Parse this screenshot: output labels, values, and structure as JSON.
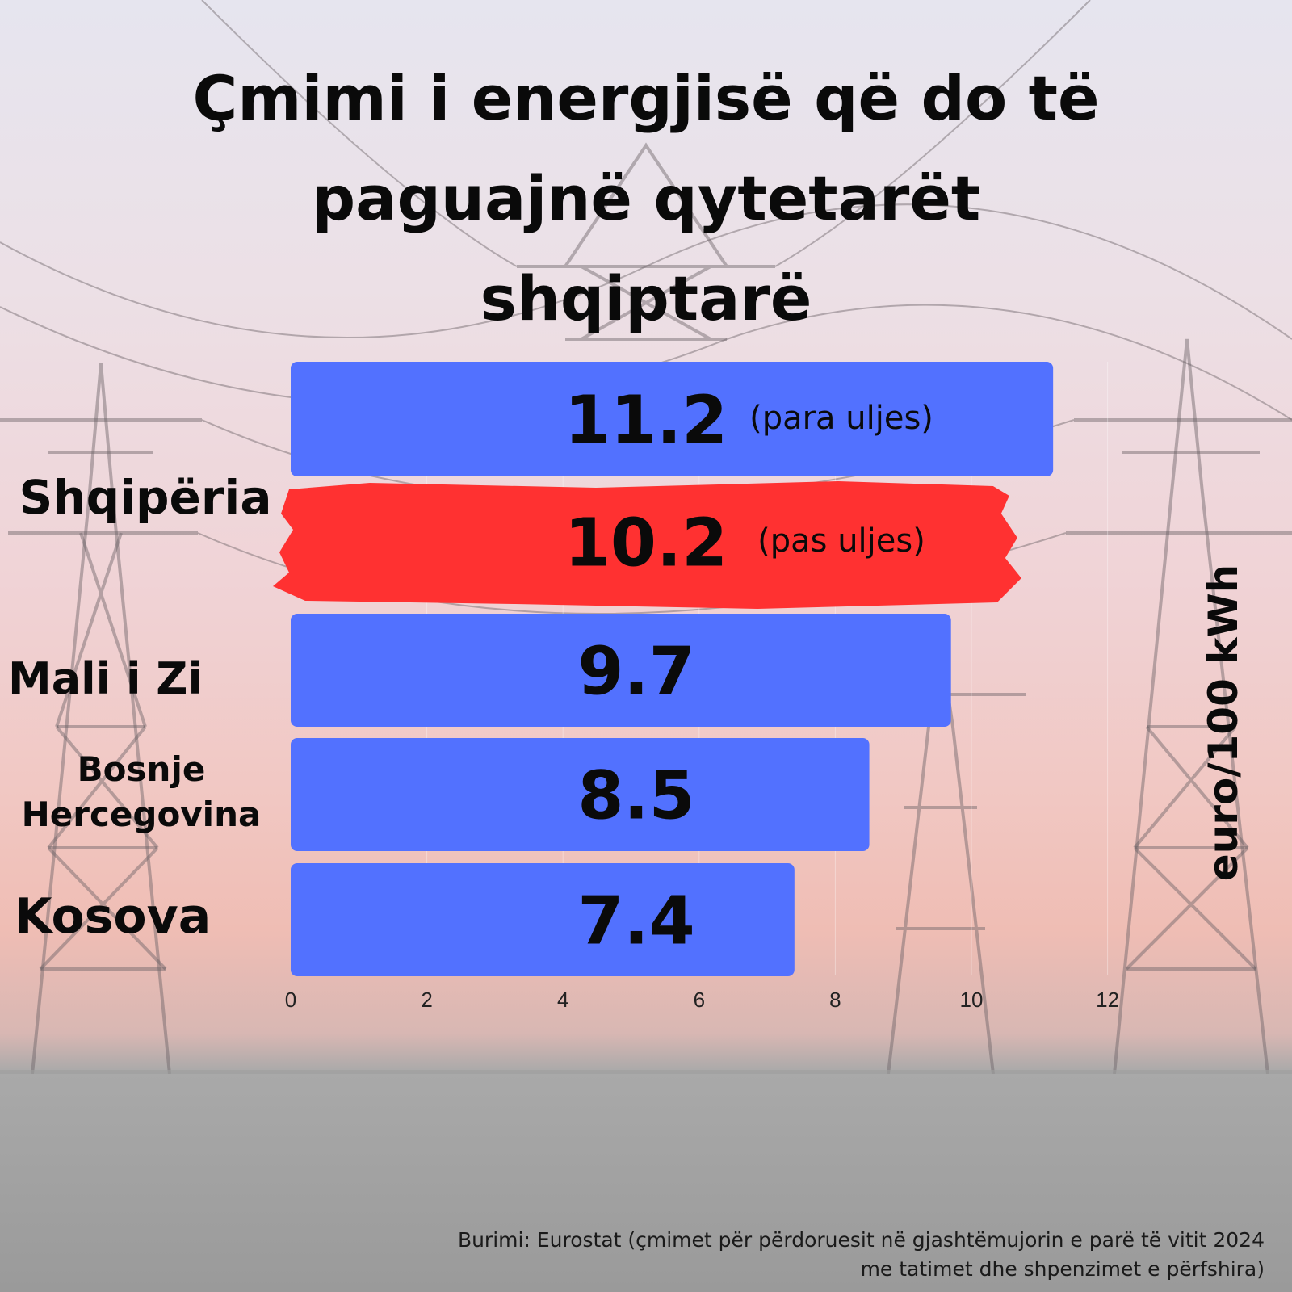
{
  "title": {
    "line1": "Çmimi i energjisë që do të",
    "line2": "paguajnë qytetarët",
    "line3": "shqiptarë"
  },
  "colors": {
    "bar": "#5271ff",
    "highlight": "#ff3131",
    "text": "#0a0a0a"
  },
  "chart_data": {
    "type": "bar",
    "orientation": "horizontal",
    "ylabel": "euro/100 kWh",
    "xlim": [
      0,
      12
    ],
    "ticks": [
      0,
      2,
      4,
      6,
      8,
      10,
      12
    ],
    "grid": true,
    "categories": [
      "Shqipëria",
      "Mali i Zi",
      "Bosnje Hercegovina",
      "Kosova"
    ],
    "bars": [
      {
        "category": "Shqipëria",
        "value": 11.2,
        "label": "11.2",
        "note": "(para uljes)",
        "highlight": false
      },
      {
        "category": "Shqipëria",
        "value": 10.2,
        "label": "10.2",
        "note": "(pas uljes)",
        "highlight": true
      },
      {
        "category": "Mali i Zi",
        "value": 9.7,
        "label": "9.7",
        "note": "",
        "highlight": false
      },
      {
        "category": "Bosnje Hercegovina",
        "value": 8.5,
        "label": "8.5",
        "note": "",
        "highlight": false
      },
      {
        "category": "Kosova",
        "value": 7.4,
        "label": "7.4",
        "note": "",
        "highlight": false
      }
    ]
  },
  "labels": {
    "shqiperia": "Shqipëria",
    "mali": "Mali i Zi",
    "bosnje1": "Bosnje",
    "bosnje2": "Hercegovina",
    "kosova": "Kosova"
  },
  "source": {
    "line1": "Burimi: Eurostat (çmimet për përdoruesit në gjashtëmujorin e parë të vitit 2024",
    "line2": "me tatimet dhe shpenzimet e përfshira)"
  }
}
